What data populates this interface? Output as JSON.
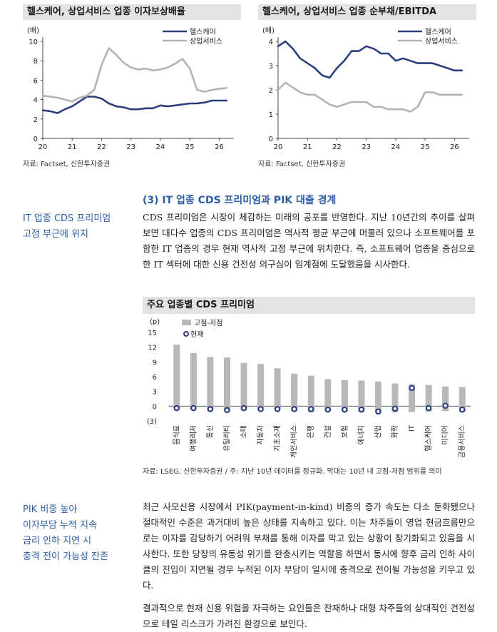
{
  "charts": [
    {
      "title": "헬스케어, 상업서비스 업종 이자보상배율",
      "source": "자료: Factset, 신한투자증권",
      "chart_data": {
        "type": "line",
        "unit": "(배)",
        "ylim": [
          0,
          10
        ],
        "yticks": [
          0,
          2,
          4,
          6,
          8,
          10
        ],
        "xlim": [
          20,
          26.5
        ],
        "xticks": [
          "20",
          "21",
          "22",
          "23",
          "24",
          "25",
          "26"
        ],
        "legend_position": "top-right",
        "series": [
          {
            "name": "헬스케어",
            "color": "#2b3f7e",
            "x": [
              20.0,
              20.25,
              20.5,
              20.75,
              21.0,
              21.25,
              21.5,
              21.75,
              22.0,
              22.25,
              22.5,
              22.75,
              23.0,
              23.25,
              23.5,
              23.75,
              24.0,
              24.25,
              24.5,
              24.75,
              25.0,
              25.25,
              25.5,
              25.75,
              26.0,
              26.25
            ],
            "y": [
              2.9,
              2.8,
              2.6,
              3.0,
              3.3,
              3.8,
              4.3,
              4.3,
              4.1,
              3.6,
              3.3,
              3.2,
              3.0,
              3.0,
              3.1,
              3.1,
              3.4,
              3.3,
              3.4,
              3.5,
              3.6,
              3.6,
              3.7,
              3.9,
              3.9,
              3.9
            ]
          },
          {
            "name": "상업서비스",
            "color": "#b3b3b3",
            "x": [
              20.0,
              20.25,
              20.5,
              20.75,
              21.0,
              21.25,
              21.5,
              21.75,
              22.0,
              22.25,
              22.5,
              22.75,
              23.0,
              23.25,
              23.5,
              23.75,
              24.0,
              24.25,
              24.5,
              24.75,
              25.0,
              25.25,
              25.5,
              25.75,
              26.0,
              26.25
            ],
            "y": [
              4.4,
              4.3,
              4.2,
              4.0,
              3.8,
              4.2,
              4.4,
              5.0,
              7.6,
              9.3,
              8.6,
              7.8,
              7.3,
              7.1,
              7.2,
              7.0,
              7.1,
              7.3,
              7.7,
              8.2,
              7.2,
              5.0,
              4.8,
              5.0,
              5.1,
              5.2
            ]
          }
        ]
      }
    },
    {
      "title": "헬스케어, 상업서비스 업종 순부채/EBITDA",
      "source": "자료: Factset, 신한투자증권",
      "chart_data": {
        "type": "line",
        "unit": "(배)",
        "ylim": [
          0,
          4
        ],
        "yticks": [
          0,
          1,
          2,
          3,
          4
        ],
        "xlim": [
          20,
          26.5
        ],
        "xticks": [
          "20",
          "21",
          "22",
          "23",
          "24",
          "25",
          "26"
        ],
        "legend_position": "top-right",
        "series": [
          {
            "name": "헬스케어",
            "color": "#2b3f7e",
            "x": [
              20.0,
              20.25,
              20.5,
              20.75,
              21.0,
              21.25,
              21.5,
              21.75,
              22.0,
              22.25,
              22.5,
              22.75,
              23.0,
              23.25,
              23.5,
              23.75,
              24.0,
              24.25,
              24.5,
              24.75,
              25.0,
              25.25,
              25.5,
              25.75,
              26.0,
              26.25
            ],
            "y": [
              3.8,
              4.0,
              3.7,
              3.3,
              3.1,
              2.9,
              2.6,
              2.5,
              2.9,
              3.2,
              3.6,
              3.6,
              3.8,
              3.7,
              3.5,
              3.5,
              3.2,
              3.3,
              3.2,
              3.1,
              3.1,
              3.1,
              3.0,
              2.9,
              2.8,
              2.8
            ]
          },
          {
            "name": "상업서비스",
            "color": "#b3b3b3",
            "x": [
              20.0,
              20.25,
              20.5,
              20.75,
              21.0,
              21.25,
              21.5,
              21.75,
              22.0,
              22.25,
              22.5,
              22.75,
              23.0,
              23.25,
              23.5,
              23.75,
              24.0,
              24.25,
              24.5,
              24.75,
              25.0,
              25.25,
              25.5,
              25.75,
              26.0,
              26.25
            ],
            "y": [
              2.0,
              2.3,
              2.1,
              1.9,
              1.8,
              1.8,
              1.6,
              1.4,
              1.3,
              1.4,
              1.5,
              1.5,
              1.5,
              1.3,
              1.3,
              1.2,
              1.2,
              1.2,
              1.1,
              1.3,
              1.9,
              1.9,
              1.8,
              1.8,
              1.8,
              1.8
            ]
          }
        ]
      }
    },
    {
      "title": "주요 업종별 CDS 프리미엄",
      "source": "자료: LSEG, 신한투자증권 / 주: 지난 10년 데이터를 정규화. 막대는 10년 내 고점-저점 범위를 의미",
      "chart_data": {
        "type": "bar",
        "unit": "(p)",
        "ylim": [
          -3,
          15
        ],
        "yticks": [
          15,
          12,
          9,
          6,
          3,
          0,
          -3
        ],
        "ytick_labels": [
          "15",
          "12",
          "9",
          "6",
          "3",
          "0",
          "(3)"
        ],
        "legend_position": "top-left",
        "categories": [
          "음식료",
          "여행레저",
          "통신",
          "유틸리티",
          "소매",
          "자동차",
          "기초소재",
          "개인서비스",
          "은행",
          "건설",
          "보험",
          "에너지",
          "산업",
          "화학",
          "IT",
          "헬스케어",
          "미디어",
          "금융서비스"
        ],
        "series": [
          {
            "name": "고점-저점",
            "color": "#b8b8b8",
            "high": [
              12.5,
              10.8,
              10.0,
              9.9,
              8.8,
              8.6,
              7.7,
              6.6,
              6.2,
              5.5,
              5.3,
              5.2,
              5.0,
              4.6,
              4.4,
              4.3,
              4.0,
              3.9
            ],
            "low": [
              -0.5,
              -0.6,
              -0.8,
              -1.0,
              -0.9,
              -0.6,
              -0.7,
              -1.0,
              -1.3,
              -1.0,
              -1.0,
              -1.2,
              -1.3,
              -1.3,
              -1.2,
              -1.1,
              -1.0,
              -1.2
            ]
          },
          {
            "name": "현재",
            "color": "#2b3f7e",
            "values": [
              -0.4,
              -0.4,
              -0.6,
              -0.8,
              -0.4,
              -0.6,
              -0.6,
              -0.6,
              -0.6,
              -0.7,
              -0.7,
              -0.7,
              -1.1,
              -0.5,
              3.7,
              -0.4,
              0.1,
              -0.7
            ]
          }
        ]
      }
    }
  ],
  "section": {
    "heading": "(3) IT 업종 CDS 프리미엄과 PIK 대출 경계",
    "side_note_1": [
      "IT 업종 CDS 프리미엄",
      "고점 부근에 위치"
    ],
    "paragraph_1": "CDS 프리미엄은 시장이 체감하는 미래의 공포를 반영한다. 지난 10년간의 추이를 살펴보면 대다수 업종의 CDS 프리미엄은 역사적 평균 부근에 머물러 있으나 소프트웨어를 포함한 IT 업종의 경우 현재 역사적 고점 부근에 위치한다. 즉, 소프트웨어 업종을 중심으로 한 IT 섹터에 대한 신용 건전성 의구심이 임계점에 도달했음을 시사한다.",
    "side_note_2": [
      "PIK 비중 높아",
      "이자부담 누적 지속",
      "금리 인하 지연 시",
      "충격 전이 가능성 잔존"
    ],
    "paragraph_2": "최근 사모신용 시장에서 PIK(payment-in-kind) 비중의 증가 속도는 다소 둔화됐으나 절대적인 수준은 과거대비 높은 상태를 지속하고 있다. 이는 차주들이 영업 현금흐름만으로는 이자를 감당하기 어려워 부채를 통해 이자를 막고 있는 상황이 장기화되고 있음을 시사한다. 또한 당장의 유동성 위기를 완충시키는 역할을 하면서 동시에 향후 금리 인하 사이클의 진입이 지연될 경우 누적된 이자 부담이 일시에 충격으로 전이될 가능성을 키우고 있다.",
    "paragraph_3": "결과적으로 현재 신용 위험을 자극하는 요인들은 잔재하나 대형 차주들의 상대적인 건전성으로 테일 리스크가 가려진 환경으로 보인다."
  }
}
